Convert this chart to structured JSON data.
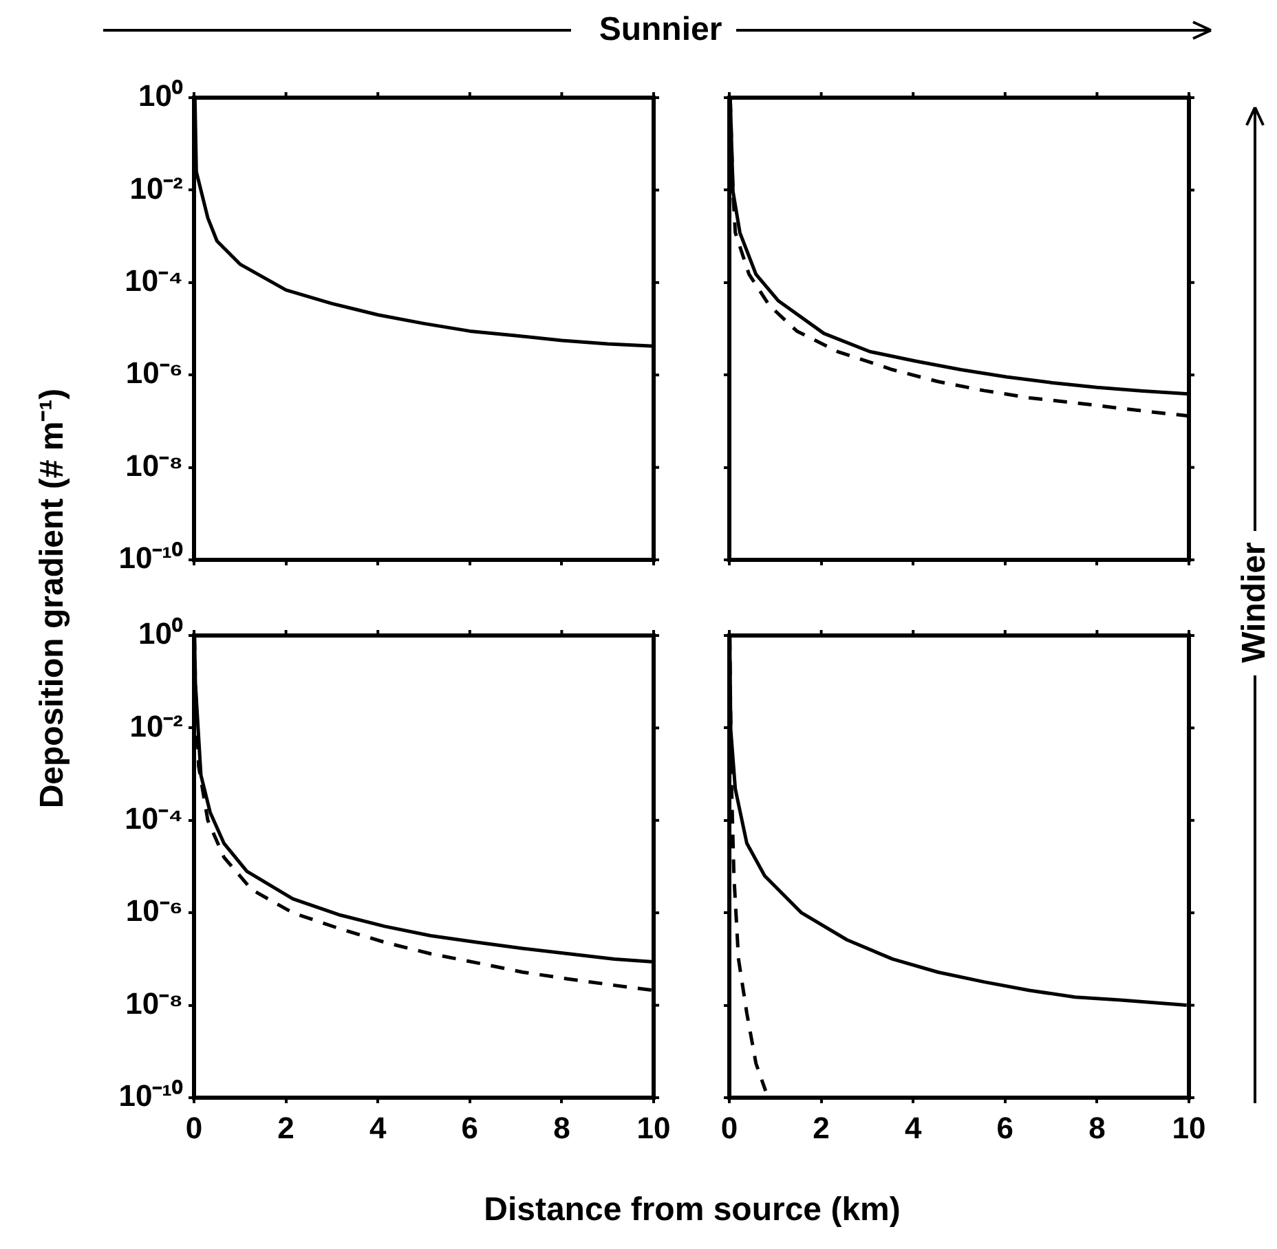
{
  "chart_data": [
    {
      "type": "line",
      "ylabel": "Deposition gradient (# m⁻¹)",
      "annotations": [
        "Sunnier"
      ],
      "log": true,
      "grid": false,
      "legend": false,
      "marker": "none",
      "tick_labels": "y",
      "xlim": [
        0,
        10
      ],
      "xticks": [
        0,
        2,
        4,
        6,
        8,
        10
      ],
      "ylim": [
        1e-10,
        1
      ],
      "yticks": [
        {
          "value": 1,
          "label": "10⁰"
        },
        {
          "value": 0.01,
          "label": "10⁻²"
        },
        {
          "value": 0.0001,
          "label": "10⁻⁴"
        },
        {
          "value": 1e-06,
          "label": "10⁻⁶"
        },
        {
          "value": 1e-08,
          "label": "10⁻⁸"
        },
        {
          "value": 1e-10,
          "label": "10⁻¹⁰"
        }
      ],
      "series": [
        {
          "color": "#000000",
          "line_style": "solid",
          "x": [
            0.02,
            0.05,
            0.3,
            0.5,
            1,
            2,
            3,
            4,
            5,
            6,
            7,
            8,
            9,
            10
          ],
          "values": [
            0.95,
            0.025,
            0.0025,
            0.00079,
            0.00025,
            6.9e-05,
            3.5e-05,
            2e-05,
            1.3e-05,
            8.9e-06,
            7.1e-06,
            5.6e-06,
            4.7e-06,
            4.2e-06
          ]
        }
      ]
    },
    {
      "type": "line",
      "annotations": [
        "Windier"
      ],
      "log": true,
      "grid": false,
      "legend": false,
      "marker": "none",
      "tick_labels": false,
      "xlim": [
        0,
        10
      ],
      "xticks": [
        0,
        2,
        4,
        6,
        8,
        10
      ],
      "ylim": [
        1e-10,
        1
      ],
      "yticks": [
        {
          "value": 1,
          "label": null
        },
        {
          "value": 0.01,
          "label": null
        },
        {
          "value": 0.0001,
          "label": null
        },
        {
          "value": 1e-06,
          "label": null
        },
        {
          "value": 1e-08,
          "label": null
        },
        {
          "value": 1e-10,
          "label": null
        }
      ],
      "series": [
        {
          "color": "#000000",
          "line_style": "solid",
          "x": [
            0.02,
            0.08,
            0.23,
            0.58,
            1.07,
            2.06,
            3.06,
            4.05,
            5.04,
            6.03,
            7.02,
            8,
            9,
            10
          ],
          "values": [
            0.95,
            0.0093,
            0.0012,
            0.00015,
            4e-05,
            7.9e-06,
            3.2e-06,
            2e-06,
            1.3e-06,
            9.1e-07,
            6.8e-07,
            5.4e-07,
            4.5e-07,
            3.9e-07
          ]
        },
        {
          "color": "#000000",
          "line_style": "dashed",
          "x": [
            0.02,
            0.08,
            0.13,
            0.43,
            0.87,
            1.47,
            2.36,
            3.55,
            4.54,
            5.54,
            6.53,
            7.52,
            8.51,
            9.4,
            10
          ],
          "values": [
            0.95,
            0.0093,
            0.0012,
            0.00015,
            3.2e-05,
            8.9e-06,
            3.2e-06,
            1.3e-06,
            7.2e-07,
            4.6e-07,
            3.2e-07,
            2.5e-07,
            1.9e-07,
            1.5e-07,
            1.3e-07
          ]
        }
      ]
    },
    {
      "type": "line",
      "xlabel": "Distance from source (km)",
      "log": true,
      "grid": false,
      "legend": false,
      "marker": "none",
      "xlim": [
        0,
        10
      ],
      "xticks": [
        0,
        2,
        4,
        6,
        8,
        10
      ],
      "ylim": [
        1e-10,
        1
      ],
      "yticks": [
        {
          "value": 1,
          "label": "10⁰"
        },
        {
          "value": 0.01,
          "label": "10⁻²"
        },
        {
          "value": 0.0001,
          "label": "10⁻⁴"
        },
        {
          "value": 1e-06,
          "label": "10⁻⁶"
        },
        {
          "value": 1e-08,
          "label": "10⁻⁸"
        },
        {
          "value": 1e-10,
          "label": "10⁻¹⁰"
        }
      ],
      "series": [
        {
          "color": "#000000",
          "line_style": "solid",
          "x": [
            0.01,
            0.03,
            0.15,
            0.35,
            0.65,
            1.15,
            2.15,
            3.15,
            4.15,
            5.15,
            6.15,
            7.15,
            8.15,
            9.15,
            10
          ],
          "values": [
            0.95,
            0.091,
            0.00095,
            0.00015,
            3.2e-05,
            7.9e-06,
            2e-06,
            9.1e-07,
            5.1e-07,
            3.2e-07,
            2.3e-07,
            1.7e-07,
            1.3e-07,
            1e-07,
            8.7e-08
          ]
        },
        {
          "color": "#000000",
          "line_style": "dashed",
          "x": [
            0.01,
            0.03,
            0.1,
            0.3,
            0.65,
            1.25,
            2.15,
            3.15,
            4.15,
            5.15,
            6.15,
            7.15,
            8.15,
            9.15,
            10
          ],
          "values": [
            0.95,
            0.091,
            0.0015,
            0.0001,
            1.6e-05,
            3.2e-06,
            1e-06,
            4.6e-07,
            2.3e-07,
            1.3e-07,
            8.3e-08,
            5.2e-08,
            3.7e-08,
            2.7e-08,
            2.1e-08
          ]
        }
      ]
    },
    {
      "type": "line",
      "log": true,
      "grid": false,
      "legend": false,
      "marker": "none",
      "tick_labels": "x",
      "xlim": [
        0,
        10
      ],
      "xticks": [
        0,
        2,
        4,
        6,
        8,
        10
      ],
      "ylim": [
        1e-10,
        1
      ],
      "yticks": [
        {
          "value": 1,
          "label": null
        },
        {
          "value": 0.01,
          "label": null
        },
        {
          "value": 0.0001,
          "label": null
        },
        {
          "value": 1e-06,
          "label": null
        },
        {
          "value": 1e-08,
          "label": null
        },
        {
          "value": 1e-10,
          "label": null
        }
      ],
      "series": [
        {
          "color": "#000000",
          "line_style": "solid",
          "x": [
            0.01,
            0.03,
            0.13,
            0.38,
            0.77,
            1.57,
            2.56,
            3.55,
            4.54,
            5.54,
            6.53,
            7.52,
            8.51,
            9.95
          ],
          "values": [
            0.95,
            0.0093,
            0.00048,
            3.2e-05,
            6.3e-06,
            1e-06,
            2.6e-07,
            1e-07,
            5.2e-08,
            3.2e-08,
            2.1e-08,
            1.5e-08,
            1.3e-08,
            1e-08
          ]
        },
        {
          "color": "#000000",
          "line_style": "dashed",
          "x": [
            0.01,
            0.02,
            0.05,
            0.1,
            0.2,
            0.38,
            0.58,
            0.79
          ],
          "values": [
            0.95,
            0.091,
            0.00048,
            6.3e-06,
            1e-07,
            6.8e-09,
            5.5e-10,
            1.4e-10
          ]
        }
      ]
    }
  ]
}
